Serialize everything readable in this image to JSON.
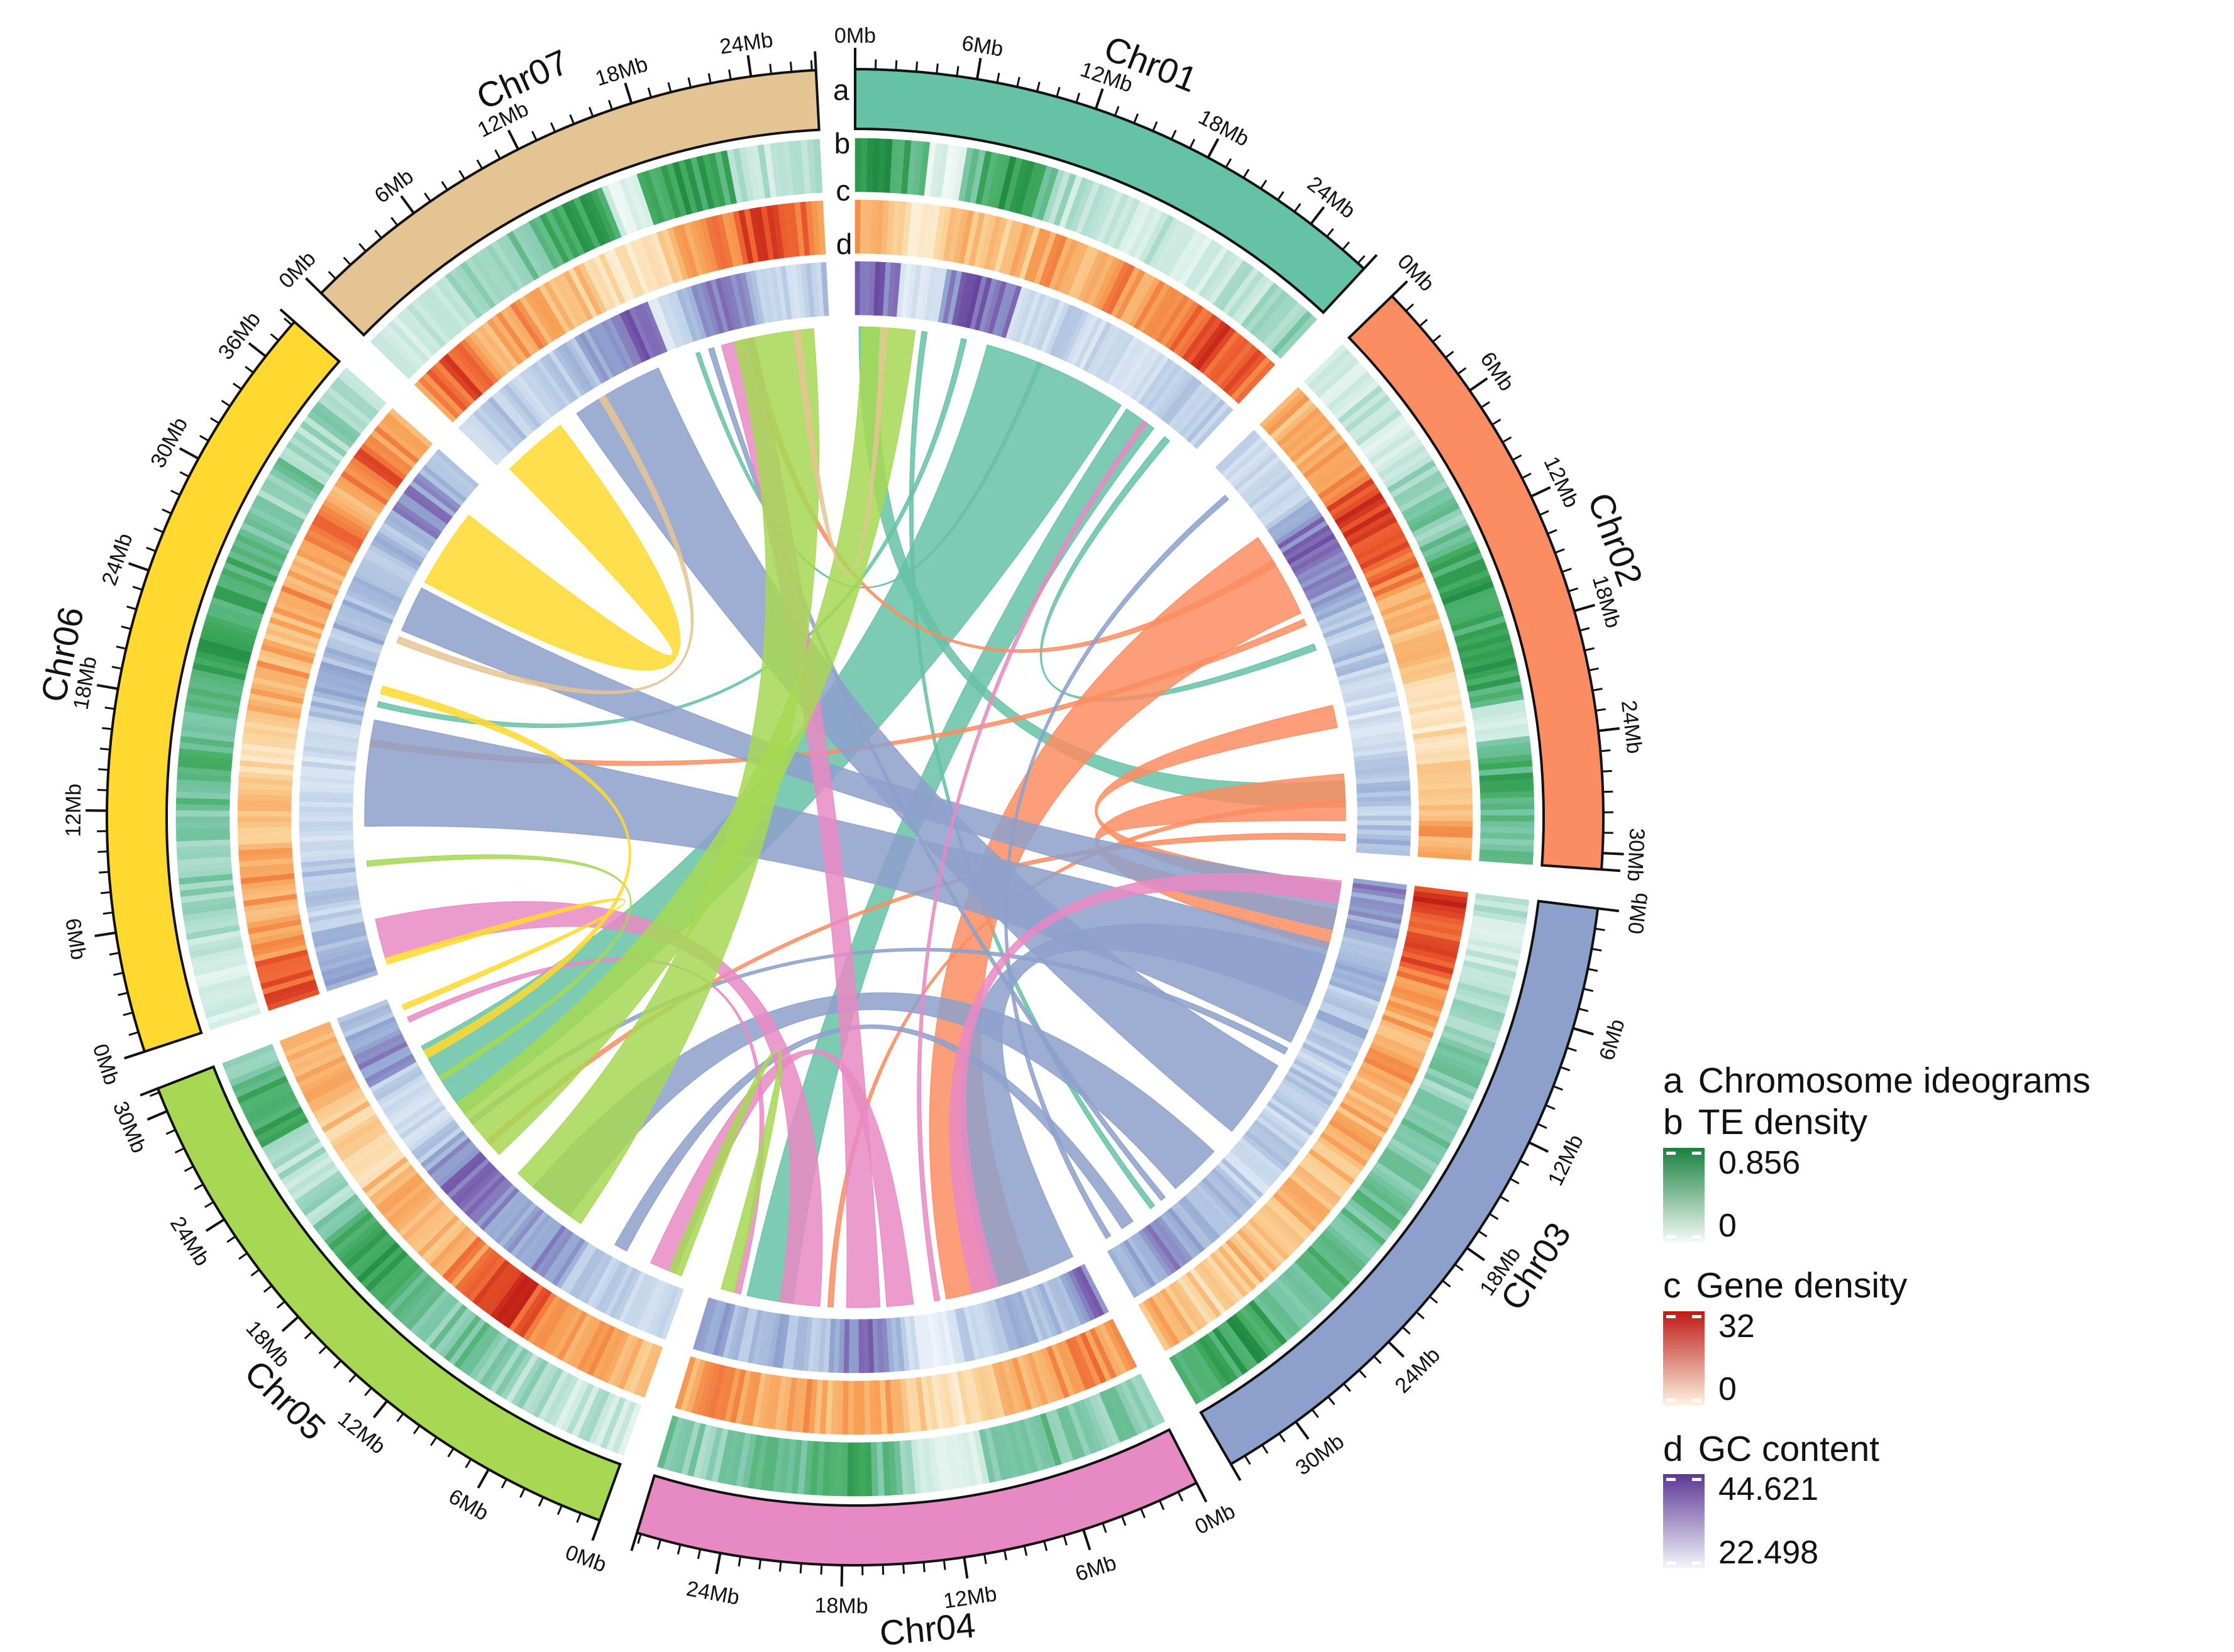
{
  "page": {
    "background": "#FFFFFF"
  },
  "track_labels": {
    "a": "a",
    "b": "b",
    "c": "c",
    "d": "d"
  },
  "legend": {
    "items": [
      {
        "letter": "a",
        "title": "Chromosome ideograms",
        "has_gradient": false
      },
      {
        "letter": "b",
        "title": "TE density",
        "max_label": "0.856",
        "min_label": "0",
        "gradient_top": "#18813D",
        "gradient_bottom": "#F4FAF7"
      },
      {
        "letter": "c",
        "title": "Gene density",
        "max_label": "32",
        "min_label": "0",
        "gradient_top": "#BE1A15",
        "gradient_bottom": "#FDF4E2"
      },
      {
        "letter": "d",
        "title": "GC content",
        "max_label": "44.621",
        "min_label": "22.498",
        "gradient_top": "#5D3795",
        "gradient_bottom": "#F2F6FB"
      }
    ]
  },
  "chart_data": {
    "type": "circos",
    "unit": "Mb",
    "tick_major_interval_mb": 6,
    "tick_minor_interval_mb": 1,
    "gap_degrees": 3,
    "start_angle_degrees": 0,
    "track_order_outer_to_inner": [
      "a ideogram",
      "b te_density",
      "c gene_density",
      "d gc_content",
      "links"
    ],
    "track_scales": {
      "te_density": {
        "min": 0,
        "max": 0.856,
        "stops": [
          [
            0,
            "#F4FAF7"
          ],
          [
            0.3,
            "#C2E6DB"
          ],
          [
            0.55,
            "#79C6A8"
          ],
          [
            0.78,
            "#3FAA5C"
          ],
          [
            1,
            "#18813D"
          ]
        ]
      },
      "gene_density": {
        "min": 0,
        "max": 32,
        "stops": [
          [
            0,
            "#FDF4E2"
          ],
          [
            0.3,
            "#FAD196"
          ],
          [
            0.55,
            "#F79E54"
          ],
          [
            0.78,
            "#EC5B2E"
          ],
          [
            1,
            "#BE1A15"
          ]
        ]
      },
      "gc_content": {
        "min": 22.498,
        "max": 44.621,
        "stops": [
          [
            0,
            "#F2F6FB"
          ],
          [
            0.35,
            "#C3D5EA"
          ],
          [
            0.6,
            "#93A9D2"
          ],
          [
            0.8,
            "#7F68B4"
          ],
          [
            1,
            "#5D3795"
          ]
        ]
      }
    },
    "values_are_normalized_0_1": true,
    "chromosomes": [
      {
        "name": "Chr01",
        "color": "#66C2A5",
        "length_mb": 27.4,
        "te_density": [
          0.8,
          0.85,
          0.8,
          0.7,
          0.15,
          0.1,
          0.6,
          0.8,
          0.85,
          0.8,
          0.7,
          0.35,
          0.3,
          0.25,
          0.3,
          0.25,
          0.2,
          0.3,
          0.25,
          0.2,
          0.25,
          0.3,
          0.35,
          0.3,
          0.4,
          0.45,
          0.5
        ],
        "gene_density": [
          0.5,
          0.4,
          0.35,
          0.15,
          0.1,
          0.3,
          0.45,
          0.4,
          0.35,
          0.3,
          0.4,
          0.5,
          0.55,
          0.5,
          0.45,
          0.55,
          0.6,
          0.5,
          0.55,
          0.65,
          0.7,
          0.75,
          0.8,
          0.85,
          0.8,
          0.75,
          0.7
        ],
        "gc_content": [
          0.85,
          0.8,
          0.75,
          0.2,
          0.15,
          0.2,
          0.7,
          0.8,
          0.85,
          0.8,
          0.75,
          0.3,
          0.25,
          0.3,
          0.35,
          0.3,
          0.25,
          0.3,
          0.35,
          0.3,
          0.25,
          0.3,
          0.35,
          0.4,
          0.35,
          0.3,
          0.35
        ]
      },
      {
        "name": "Chr02",
        "color": "#FC8D62",
        "length_mb": 30.8,
        "te_density": [
          0.25,
          0.2,
          0.25,
          0.3,
          0.25,
          0.2,
          0.25,
          0.35,
          0.45,
          0.5,
          0.55,
          0.5,
          0.6,
          0.75,
          0.8,
          0.85,
          0.8,
          0.75,
          0.8,
          0.85,
          0.8,
          0.75,
          0.3,
          0.2,
          0.5,
          0.7,
          0.75,
          0.7,
          0.65,
          0.6,
          0.55
        ],
        "gene_density": [
          0.5,
          0.45,
          0.4,
          0.45,
          0.5,
          0.55,
          0.7,
          0.85,
          0.9,
          0.85,
          0.8,
          0.75,
          0.7,
          0.6,
          0.5,
          0.45,
          0.4,
          0.45,
          0.4,
          0.3,
          0.25,
          0.2,
          0.15,
          0.2,
          0.25,
          0.3,
          0.35,
          0.4,
          0.45,
          0.5,
          0.45
        ],
        "gc_content": [
          0.3,
          0.25,
          0.3,
          0.35,
          0.3,
          0.35,
          0.6,
          0.75,
          0.8,
          0.75,
          0.7,
          0.65,
          0.6,
          0.5,
          0.45,
          0.4,
          0.45,
          0.4,
          0.35,
          0.3,
          0.25,
          0.2,
          0.25,
          0.3,
          0.35,
          0.45,
          0.5,
          0.45,
          0.4,
          0.45,
          0.5
        ]
      },
      {
        "name": "Chr03",
        "color": "#8DA0CB",
        "length_mb": 33.8,
        "te_density": [
          0.3,
          0.25,
          0.2,
          0.25,
          0.3,
          0.35,
          0.4,
          0.45,
          0.5,
          0.55,
          0.5,
          0.45,
          0.5,
          0.55,
          0.6,
          0.55,
          0.5,
          0.55,
          0.6,
          0.65,
          0.6,
          0.55,
          0.6,
          0.65,
          0.6,
          0.55,
          0.6,
          0.7,
          0.8,
          0.85,
          0.8,
          0.75,
          0.7,
          0.65
        ],
        "gene_density": [
          0.9,
          0.85,
          0.8,
          0.85,
          0.8,
          0.7,
          0.6,
          0.55,
          0.5,
          0.45,
          0.5,
          0.55,
          0.5,
          0.45,
          0.4,
          0.45,
          0.5,
          0.45,
          0.4,
          0.35,
          0.4,
          0.45,
          0.4,
          0.35,
          0.3,
          0.35,
          0.4,
          0.35,
          0.3,
          0.25,
          0.3,
          0.35,
          0.4,
          0.45
        ],
        "gc_content": [
          0.7,
          0.65,
          0.6,
          0.55,
          0.5,
          0.45,
          0.5,
          0.45,
          0.4,
          0.45,
          0.5,
          0.45,
          0.4,
          0.35,
          0.4,
          0.45,
          0.4,
          0.35,
          0.3,
          0.35,
          0.4,
          0.35,
          0.3,
          0.35,
          0.4,
          0.45,
          0.5,
          0.55,
          0.6,
          0.65,
          0.7,
          0.65,
          0.6,
          0.55
        ]
      },
      {
        "name": "Chr04",
        "color": "#E78AC3",
        "length_mb": 28.2,
        "te_density": [
          0.5,
          0.55,
          0.5,
          0.45,
          0.5,
          0.55,
          0.6,
          0.55,
          0.5,
          0.45,
          0.15,
          0.1,
          0.15,
          0.3,
          0.5,
          0.6,
          0.7,
          0.75,
          0.7,
          0.65,
          0.55,
          0.6,
          0.6,
          0.55,
          0.5,
          0.45,
          0.5,
          0.55
        ],
        "gene_density": [
          0.55,
          0.6,
          0.65,
          0.6,
          0.55,
          0.5,
          0.45,
          0.4,
          0.35,
          0.3,
          0.15,
          0.1,
          0.15,
          0.3,
          0.45,
          0.5,
          0.55,
          0.5,
          0.45,
          0.5,
          0.55,
          0.5,
          0.45,
          0.5,
          0.55,
          0.6,
          0.55,
          0.5
        ],
        "gc_content": [
          0.75,
          0.7,
          0.5,
          0.45,
          0.4,
          0.45,
          0.5,
          0.45,
          0.4,
          0.35,
          0.15,
          0.1,
          0.15,
          0.3,
          0.5,
          0.7,
          0.78,
          0.75,
          0.6,
          0.45,
          0.45,
          0.5,
          0.55,
          0.5,
          0.45,
          0.5,
          0.55,
          0.6
        ]
      },
      {
        "name": "Chr05",
        "color": "#A6D854",
        "length_mb": 31.2,
        "te_density": [
          0.2,
          0.25,
          0.3,
          0.25,
          0.3,
          0.35,
          0.4,
          0.45,
          0.5,
          0.55,
          0.6,
          0.55,
          0.5,
          0.55,
          0.7,
          0.8,
          0.85,
          0.8,
          0.75,
          0.7,
          0.5,
          0.4,
          0.35,
          0.3,
          0.35,
          0.4,
          0.75,
          0.8,
          0.75,
          0.6,
          0.5
        ],
        "gene_density": [
          0.4,
          0.45,
          0.5,
          0.55,
          0.6,
          0.55,
          0.6,
          0.65,
          0.8,
          0.9,
          0.85,
          0.8,
          0.7,
          0.6,
          0.5,
          0.45,
          0.4,
          0.45,
          0.5,
          0.45,
          0.35,
          0.25,
          0.2,
          0.25,
          0.3,
          0.35,
          0.4,
          0.45,
          0.5,
          0.45,
          0.4
        ],
        "gc_content": [
          0.3,
          0.25,
          0.3,
          0.35,
          0.4,
          0.35,
          0.4,
          0.45,
          0.6,
          0.7,
          0.65,
          0.6,
          0.5,
          0.55,
          0.7,
          0.75,
          0.8,
          0.75,
          0.7,
          0.6,
          0.4,
          0.3,
          0.25,
          0.3,
          0.35,
          0.4,
          0.65,
          0.7,
          0.65,
          0.5,
          0.45
        ]
      },
      {
        "name": "Chr06",
        "color": "#FFD92F",
        "length_mb": 38.2,
        "te_density": [
          0.2,
          0.25,
          0.2,
          0.25,
          0.3,
          0.35,
          0.4,
          0.45,
          0.5,
          0.45,
          0.5,
          0.55,
          0.6,
          0.65,
          0.7,
          0.65,
          0.6,
          0.65,
          0.7,
          0.75,
          0.8,
          0.85,
          0.8,
          0.75,
          0.8,
          0.75,
          0.7,
          0.6,
          0.5,
          0.45,
          0.5,
          0.55,
          0.4,
          0.35,
          0.4,
          0.45,
          0.4,
          0.35
        ],
        "gene_density": [
          0.85,
          0.8,
          0.75,
          0.6,
          0.5,
          0.45,
          0.5,
          0.55,
          0.5,
          0.45,
          0.4,
          0.45,
          0.4,
          0.3,
          0.25,
          0.15,
          0.2,
          0.3,
          0.4,
          0.45,
          0.5,
          0.45,
          0.4,
          0.45,
          0.5,
          0.55,
          0.5,
          0.45,
          0.6,
          0.7,
          0.65,
          0.5,
          0.45,
          0.6,
          0.75,
          0.7,
          0.55,
          0.45
        ],
        "gc_content": [
          0.6,
          0.55,
          0.5,
          0.45,
          0.4,
          0.35,
          0.4,
          0.45,
          0.4,
          0.35,
          0.3,
          0.35,
          0.3,
          0.25,
          0.3,
          0.25,
          0.3,
          0.35,
          0.4,
          0.45,
          0.5,
          0.55,
          0.5,
          0.45,
          0.5,
          0.55,
          0.5,
          0.45,
          0.4,
          0.45,
          0.5,
          0.45,
          0.5,
          0.65,
          0.7,
          0.6,
          0.5,
          0.45
        ]
      },
      {
        "name": "Chr07",
        "color": "#E5C494",
        "length_mb": 27.2,
        "te_density": [
          0.2,
          0.25,
          0.3,
          0.25,
          0.3,
          0.35,
          0.4,
          0.45,
          0.5,
          0.55,
          0.6,
          0.75,
          0.8,
          0.85,
          0.8,
          0.15,
          0.2,
          0.7,
          0.8,
          0.85,
          0.8,
          0.75,
          0.4,
          0.3,
          0.25,
          0.3,
          0.35
        ],
        "gene_density": [
          0.6,
          0.75,
          0.8,
          0.7,
          0.5,
          0.45,
          0.5,
          0.55,
          0.5,
          0.45,
          0.4,
          0.35,
          0.3,
          0.2,
          0.15,
          0.1,
          0.2,
          0.4,
          0.5,
          0.55,
          0.6,
          0.65,
          0.8,
          0.85,
          0.8,
          0.7,
          0.6
        ],
        "gc_content": [
          0.35,
          0.4,
          0.45,
          0.4,
          0.35,
          0.3,
          0.35,
          0.4,
          0.45,
          0.5,
          0.55,
          0.7,
          0.75,
          0.8,
          0.75,
          0.2,
          0.25,
          0.55,
          0.65,
          0.7,
          0.65,
          0.6,
          0.4,
          0.35,
          0.3,
          0.35,
          0.4
        ]
      }
    ],
    "links": [
      [
        "Chr01",
        10,
        21,
        "Chr05",
        21,
        27,
        "#66C2A5"
      ],
      [
        "Chr01",
        21.5,
        24,
        "Chr04",
        22,
        25.5,
        "#66C2A5"
      ],
      [
        "Chr01",
        0.3,
        1.8,
        "Chr02",
        25.5,
        27.5,
        "#66C2A5"
      ],
      [
        "Chr01",
        25,
        25.5,
        "Chr02",
        15,
        15.5,
        "#66C2A5"
      ],
      [
        "Chr01",
        5,
        5.4,
        "Chr03",
        29,
        29.4,
        "#66C2A5"
      ],
      [
        "Chr01",
        8,
        8.4,
        "Chr06",
        20,
        20.4,
        "#66C2A5"
      ],
      [
        "Chr01",
        14,
        14.3,
        "Chr07",
        17,
        17.3,
        "#66C2A5"
      ],
      [
        "Chr02",
        6,
        12.5,
        "Chr04",
        4,
        10.5,
        "#FC8D62"
      ],
      [
        "Chr02",
        19.8,
        21.5,
        "Chr03",
        0.5,
        2,
        "#FC8D62"
      ],
      [
        "Chr02",
        25,
        28.5,
        "Chr03",
        2.5,
        5.5,
        "#FC8D62"
      ],
      [
        "Chr02",
        13,
        13.5,
        "Chr06",
        17,
        17.5,
        "#FC8D62"
      ],
      [
        "Chr02",
        8,
        8.5,
        "Chr07",
        21,
        21.5,
        "#FC8D62"
      ],
      [
        "Chr02",
        27,
        27.4,
        "Chr04",
        19,
        19.4,
        "#FC8D62"
      ],
      [
        "Chr02",
        29.5,
        30,
        "Chr05",
        18,
        18.4,
        "#FC8D62"
      ],
      [
        "Chr03",
        5,
        13,
        "Chr06",
        11,
        19,
        "#8DA0CB"
      ],
      [
        "Chr03",
        15,
        21,
        "Chr07",
        7,
        14,
        "#8DA0CB"
      ],
      [
        "Chr03",
        23,
        27,
        "Chr05",
        10,
        13.5,
        "#8DA0CB"
      ],
      [
        "Chr03",
        0.5,
        4,
        "Chr06",
        26,
        29.5,
        "#8DA0CB"
      ],
      [
        "Chr03",
        6,
        10,
        "Chr04",
        0.5,
        7,
        "#8DA0CB"
      ],
      [
        "Chr03",
        31,
        32,
        "Chr05",
        5,
        6,
        "#8DA0CB"
      ],
      [
        "Chr03",
        13.5,
        14,
        "Chr05",
        20,
        20.4,
        "#8DA0CB"
      ],
      [
        "Chr03",
        28,
        28.4,
        "Chr07",
        18,
        18.4,
        "#8DA0CB"
      ],
      [
        "Chr03",
        33,
        33.4,
        "Chr02",
        2,
        2.4,
        "#8DA0CB"
      ],
      [
        "Chr04",
        6.5,
        8.5,
        "Chr03",
        0.3,
        2,
        "#E78AC3"
      ],
      [
        "Chr04",
        13,
        15,
        "Chr05",
        1,
        3,
        "#E78AC3"
      ],
      [
        "Chr04",
        15.5,
        18,
        "Chr07",
        19,
        21.5,
        "#E78AC3"
      ],
      [
        "Chr04",
        20,
        23,
        "Chr06",
        1,
        4,
        "#E78AC3"
      ],
      [
        "Chr04",
        26,
        26.5,
        "Chr05",
        29,
        29.4,
        "#E78AC3"
      ],
      [
        "Chr04",
        11,
        11.4,
        "Chr01",
        23,
        23.4,
        "#E78AC3"
      ],
      [
        "Chr05",
        9,
        15,
        "Chr07",
        20,
        26,
        "#A6D854"
      ],
      [
        "Chr05",
        17,
        22,
        "Chr01",
        0.5,
        4.5,
        "#A6D854"
      ],
      [
        "Chr05",
        0.5,
        1.5,
        "Chr04",
        26.5,
        27.5,
        "#A6D854"
      ],
      [
        "Chr05",
        24,
        24.4,
        "Chr06",
        8,
        8.4,
        "#A6D854"
      ],
      [
        "Chr06",
        30,
        36,
        "Chr07",
        0.5,
        5.5,
        "#FFD92F"
      ],
      [
        "Chr06",
        21,
        21.6,
        "Chr05",
        26,
        26.6,
        "#FFD92F"
      ],
      [
        "Chr06",
        0.5,
        1,
        "Chr05",
        30,
        30.4,
        "#FFD92F"
      ],
      [
        "Chr07",
        9,
        9.5,
        "Chr06",
        25,
        25.5,
        "#E5C494"
      ],
      [
        "Chr07",
        24.5,
        25,
        "Chr01",
        2,
        2.4,
        "#E5C494"
      ]
    ]
  }
}
